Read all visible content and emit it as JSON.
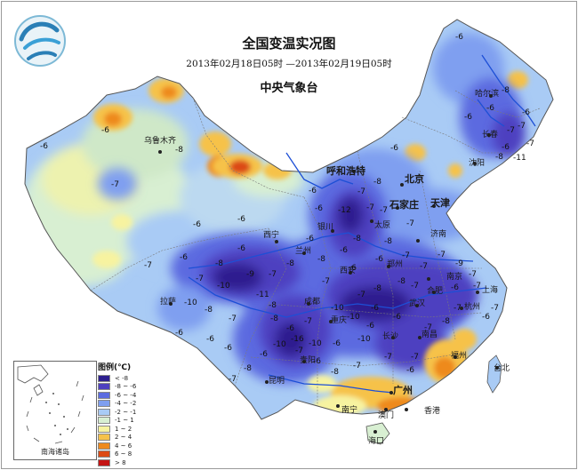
{
  "title": "全国变温实况图",
  "period": "2013年02月18日05时 —2013年02月19日05时",
  "issuer": "中央气象台",
  "legend": {
    "title": "图例(℃)",
    "items": [
      {
        "label": "< -8",
        "color": "#2d1f8f"
      },
      {
        "label": "-8 ~ -6",
        "color": "#4e3fc0"
      },
      {
        "label": "-6 ~ -4",
        "color": "#5b6be0"
      },
      {
        "label": "-4 ~ -2",
        "color": "#7f9ff0"
      },
      {
        "label": "-2 ~ -1",
        "color": "#a9cbf5"
      },
      {
        "label": "-1 ~ 1",
        "color": "#d8efd2"
      },
      {
        "label": "1 ~ 2",
        "color": "#f7f3a0"
      },
      {
        "label": "2 ~ 4",
        "color": "#f6c24a"
      },
      {
        "label": "4 ~ 6",
        "color": "#ee8a1e"
      },
      {
        "label": "6 ~ 8",
        "color": "#dc4a14"
      },
      {
        "label": "> 8",
        "color": "#c41414"
      }
    ]
  },
  "inset_label": "南海诸岛",
  "cities": {
    "wulumuqi": "乌鲁木齐",
    "huhehaote": "呼和浩特",
    "beijing": "北京",
    "tianjin": "天津",
    "shijiazhuang": "石家庄",
    "taiyuan": "太原",
    "jinan": "济南",
    "haerbin": "哈尔滨",
    "changchun": "长春",
    "shenyang": "沈阳",
    "xining": "西宁",
    "lanzhou": "兰州",
    "yinchuan": "银川",
    "xian": "西安",
    "zhengzhou": "郑州",
    "hefei": "合肥",
    "nanjing": "南京",
    "shanghai": "上海",
    "hangzhou": "杭州",
    "wuhan": "武汉",
    "chengdu": "成都",
    "chongqing": "重庆",
    "lasa": "拉萨",
    "changsha": "长沙",
    "nanchang": "南昌",
    "fuzhou": "福州",
    "taibei": "台北",
    "guiyang": "贵阳",
    "kunming": "昆明",
    "nanning": "南宁",
    "guangzhou": "广州",
    "aomen": "澳门",
    "xianggang": "香港",
    "haikou": "海口"
  },
  "values": {
    "v1": "-6",
    "v2": "-6",
    "v3": "-7",
    "v4": "-8",
    "v5": "-6",
    "v6": "-8",
    "v7": "-6",
    "v8": "-7",
    "v9": "-11",
    "v10": "-6",
    "v11": "-7",
    "v12": "-6",
    "v13": "-7",
    "v14": "-8",
    "v15": "-6",
    "v16": "-12",
    "v17": "-7",
    "v18": "-8",
    "v19": "-7",
    "v20": "-6",
    "v21": "-8",
    "v22": "-6",
    "v23": "-7",
    "v24": "-6",
    "v25": "-10",
    "v26": "-11",
    "v27": "-7",
    "v28": "-8",
    "v29": "-6",
    "v30": "-8",
    "v31": "-7",
    "v32": "-10",
    "v33": "-6",
    "v34": "-8",
    "v35": "-7",
    "v36": "-8",
    "v37": "-6",
    "v38": "-10",
    "v39": "-6",
    "v40": "-7",
    "v41": "-8",
    "v42": "-6",
    "v43": "-6",
    "v44": "-10",
    "v45": "-7",
    "v46": "-8",
    "v47": "-6",
    "v48": "-7",
    "v49": "-7",
    "v50": "-9",
    "v51": "-7",
    "v52": "-6",
    "v53": "-8",
    "v54": "-6",
    "v55": "-7",
    "v56": "-6",
    "v57": "-7",
    "v58": "-7",
    "v59": "-7",
    "v60": "-6",
    "v61": "-7",
    "v62": "-8",
    "v63": "-6",
    "v64": "-7",
    "v65": "-7",
    "v66": "-16",
    "v67": "-10",
    "v68": "-8",
    "v69": "-7",
    "v70": "-6",
    "v71": "-9",
    "v72": "-8",
    "v73": "-7",
    "v74": "-6",
    "v75": "-6",
    "v76": "-8",
    "v77": "-7",
    "v78": "-10",
    "v79": "-7",
    "v80": "-6",
    "v81": "-8",
    "v82": "-10",
    "v83": "-6",
    "v84": "-6",
    "v85": "-7",
    "v86": "-6",
    "v87": "-6",
    "v88": "-7",
    "v89": "-6",
    "v90": "-7"
  },
  "colors": {
    "strong_cooling": "#3a2ea8",
    "cooling": "#6f86e8",
    "neutral": "#d6efd8",
    "warming": "#f1a52a",
    "strong_warming": "#d84a14",
    "river": "#1d4fd6",
    "boundary": "#555555"
  }
}
